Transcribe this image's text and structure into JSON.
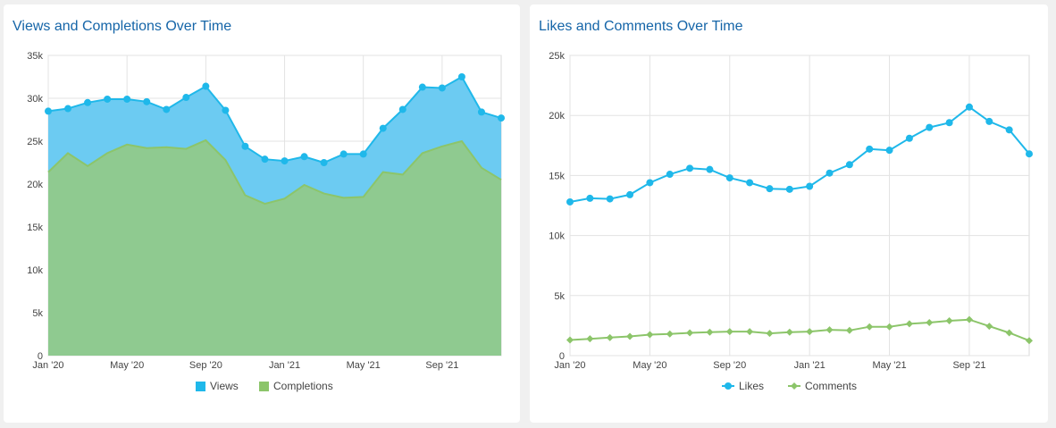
{
  "chart_data": [
    {
      "type": "area",
      "title": "Views and Completions Over Time",
      "categories": [
        "Jan '20",
        "Feb '20",
        "Mar '20",
        "Apr '20",
        "May '20",
        "Jun '20",
        "Jul '20",
        "Aug '20",
        "Sep '20",
        "Oct '20",
        "Nov '20",
        "Dec '20",
        "Jan '21",
        "Feb '21",
        "Mar '21",
        "Apr '21",
        "May '21",
        "Jun '21",
        "Jul '21",
        "Aug '21",
        "Sep '21",
        "Oct '21",
        "Nov '21",
        "Dec '21"
      ],
      "x_tick_labels": [
        "Jan '20",
        "May '20",
        "Sep '20",
        "Jan '21",
        "May '21",
        "Sep '21"
      ],
      "y_tick_labels": [
        "0",
        "5k",
        "10k",
        "15k",
        "20k",
        "25k",
        "30k",
        "35k"
      ],
      "ylim": [
        0,
        35000
      ],
      "series": [
        {
          "name": "Views",
          "color": "#1fb8ea",
          "fill": "#6ccbf2",
          "marker": "circle",
          "values": [
            28500,
            28800,
            29500,
            29900,
            29900,
            29600,
            28700,
            30100,
            31400,
            28600,
            24400,
            22900,
            22700,
            23200,
            22500,
            23500,
            23500,
            26500,
            28700,
            31300,
            31200,
            32500,
            28400,
            27700
          ]
        },
        {
          "name": "Completions",
          "color": "#8cc56a",
          "fill": "#8fca90",
          "marker": "none",
          "values": [
            21400,
            23600,
            22100,
            23600,
            24600,
            24200,
            24300,
            24100,
            25100,
            22800,
            18700,
            17700,
            18300,
            19900,
            18900,
            18400,
            18500,
            21400,
            21100,
            23600,
            24400,
            25000,
            21900,
            20500
          ]
        }
      ]
    },
    {
      "type": "line",
      "title": "Likes and Comments Over Time",
      "categories": [
        "Jan '20",
        "Feb '20",
        "Mar '20",
        "Apr '20",
        "May '20",
        "Jun '20",
        "Jul '20",
        "Aug '20",
        "Sep '20",
        "Oct '20",
        "Nov '20",
        "Dec '20",
        "Jan '21",
        "Feb '21",
        "Mar '21",
        "Apr '21",
        "May '21",
        "Jun '21",
        "Jul '21",
        "Aug '21",
        "Sep '21",
        "Oct '21",
        "Nov '21",
        "Dec '21"
      ],
      "x_tick_labels": [
        "Jan '20",
        "May '20",
        "Sep '20",
        "Jan '21",
        "May '21",
        "Sep '21"
      ],
      "y_tick_labels": [
        "0",
        "5k",
        "10k",
        "15k",
        "20k",
        "25k"
      ],
      "ylim": [
        0,
        25000
      ],
      "series": [
        {
          "name": "Likes",
          "color": "#1fb8ea",
          "marker": "circle",
          "values": [
            12800,
            13100,
            13050,
            13400,
            14400,
            15100,
            15600,
            15500,
            14800,
            14400,
            13900,
            13850,
            14100,
            15200,
            15900,
            17200,
            17100,
            18100,
            19000,
            19400,
            20700,
            19500,
            18800,
            16800
          ]
        },
        {
          "name": "Comments",
          "color": "#8cc56a",
          "marker": "diamond",
          "values": [
            1300,
            1400,
            1500,
            1600,
            1750,
            1800,
            1900,
            1950,
            2000,
            2000,
            1850,
            1950,
            2000,
            2150,
            2100,
            2400,
            2400,
            2650,
            2750,
            2900,
            3000,
            2450,
            1900,
            1250
          ]
        }
      ]
    }
  ]
}
